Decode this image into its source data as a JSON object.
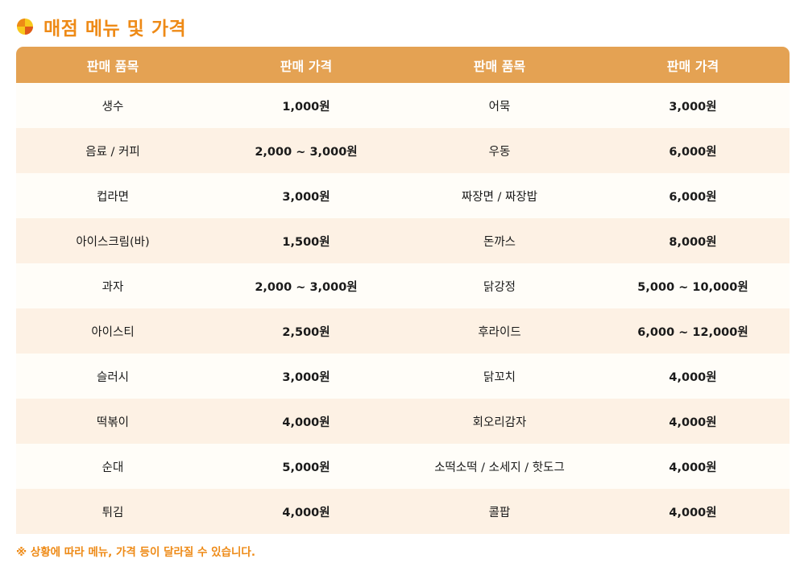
{
  "title": "매점 메뉴 및 가격",
  "accent_color": "#ee8a16",
  "header_color": "#e4a253",
  "icon": "pie-chart-icon",
  "table": {
    "headers": [
      "판매 품목",
      "판매 가격",
      "판매 품목",
      "판매 가격"
    ],
    "rows": [
      {
        "item1": "생수",
        "price1": "1,000원",
        "item2": "어묵",
        "price2": "3,000원"
      },
      {
        "item1": "음료 / 커피",
        "price1": "2,000 ~ 3,000원",
        "item2": "우동",
        "price2": "6,000원"
      },
      {
        "item1": "컵라면",
        "price1": "3,000원",
        "item2": "짜장면 / 짜장밥",
        "price2": "6,000원"
      },
      {
        "item1": "아이스크림(바)",
        "price1": "1,500원",
        "item2": "돈까스",
        "price2": "8,000원"
      },
      {
        "item1": "과자",
        "price1": "2,000 ~ 3,000원",
        "item2": "닭강정",
        "price2": "5,000 ~ 10,000원"
      },
      {
        "item1": "아이스티",
        "price1": "2,500원",
        "item2": "후라이드",
        "price2": "6,000 ~ 12,000원"
      },
      {
        "item1": "슬러시",
        "price1": "3,000원",
        "item2": "닭꼬치",
        "price2": "4,000원"
      },
      {
        "item1": "떡볶이",
        "price1": "4,000원",
        "item2": "회오리감자",
        "price2": "4,000원"
      },
      {
        "item1": "순대",
        "price1": "5,000원",
        "item2": "소떡소떡 / 소세지 / 핫도그",
        "price2": "4,000원"
      },
      {
        "item1": "튀김",
        "price1": "4,000원",
        "item2": "콜팝",
        "price2": "4,000원"
      }
    ]
  },
  "footnote": "※ 상황에 따라 메뉴, 가격 등이 달라질 수 있습니다."
}
